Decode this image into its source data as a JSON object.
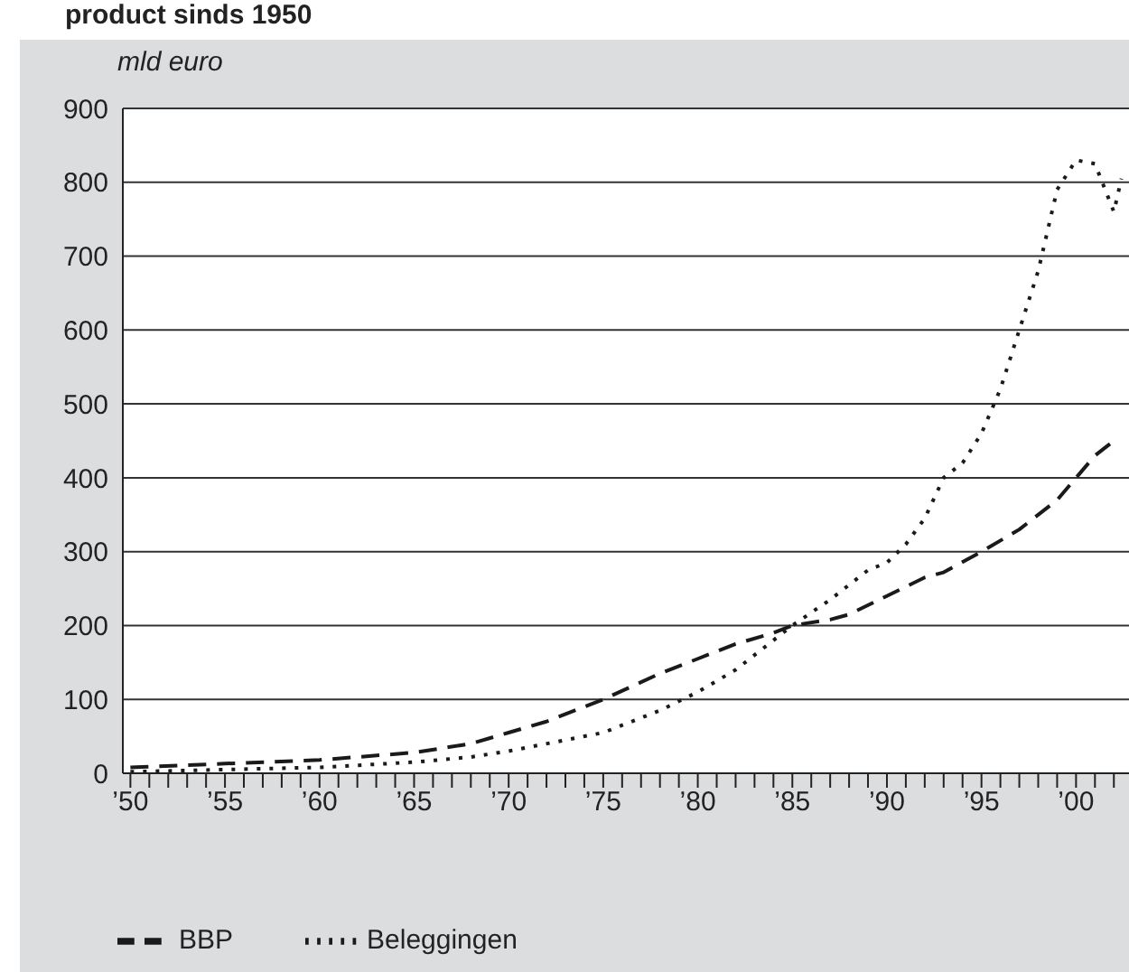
{
  "chart_data": {
    "type": "line",
    "title": "product sinds 1950",
    "ylabel": "mld euro",
    "xlim": [
      1949.6,
      2002.8
    ],
    "ylim": [
      0,
      900
    ],
    "yticks": [
      0,
      100,
      200,
      300,
      400,
      500,
      600,
      700,
      800,
      900
    ],
    "xticks": [
      {
        "value": 1950,
        "label": "’50"
      },
      {
        "value": 1951,
        "label": null
      },
      {
        "value": 1952,
        "label": null
      },
      {
        "value": 1953,
        "label": null
      },
      {
        "value": 1954,
        "label": null
      },
      {
        "value": 1955,
        "label": "’55"
      },
      {
        "value": 1956,
        "label": null
      },
      {
        "value": 1957,
        "label": null
      },
      {
        "value": 1958,
        "label": null
      },
      {
        "value": 1959,
        "label": null
      },
      {
        "value": 1960,
        "label": "’60"
      },
      {
        "value": 1961,
        "label": null
      },
      {
        "value": 1962,
        "label": null
      },
      {
        "value": 1963,
        "label": null
      },
      {
        "value": 1964,
        "label": null
      },
      {
        "value": 1965,
        "label": "’65"
      },
      {
        "value": 1966,
        "label": null
      },
      {
        "value": 1967,
        "label": null
      },
      {
        "value": 1968,
        "label": null
      },
      {
        "value": 1969,
        "label": null
      },
      {
        "value": 1970,
        "label": "’70"
      },
      {
        "value": 1971,
        "label": null
      },
      {
        "value": 1972,
        "label": null
      },
      {
        "value": 1973,
        "label": null
      },
      {
        "value": 1974,
        "label": null
      },
      {
        "value": 1975,
        "label": "’75"
      },
      {
        "value": 1976,
        "label": null
      },
      {
        "value": 1977,
        "label": null
      },
      {
        "value": 1978,
        "label": null
      },
      {
        "value": 1979,
        "label": null
      },
      {
        "value": 1980,
        "label": "’80"
      },
      {
        "value": 1981,
        "label": null
      },
      {
        "value": 1982,
        "label": null
      },
      {
        "value": 1983,
        "label": null
      },
      {
        "value": 1984,
        "label": null
      },
      {
        "value": 1985,
        "label": "’85"
      },
      {
        "value": 1986,
        "label": null
      },
      {
        "value": 1987,
        "label": null
      },
      {
        "value": 1988,
        "label": null
      },
      {
        "value": 1989,
        "label": null
      },
      {
        "value": 1990,
        "label": "’90"
      },
      {
        "value": 1991,
        "label": null
      },
      {
        "value": 1992,
        "label": null
      },
      {
        "value": 1993,
        "label": null
      },
      {
        "value": 1994,
        "label": null
      },
      {
        "value": 1995,
        "label": "’95"
      },
      {
        "value": 1996,
        "label": null
      },
      {
        "value": 1997,
        "label": null
      },
      {
        "value": 1998,
        "label": null
      },
      {
        "value": 1999,
        "label": null
      },
      {
        "value": 2000,
        "label": "’00"
      },
      {
        "value": 2001,
        "label": null
      },
      {
        "value": 2002,
        "label": null
      }
    ],
    "grid": "y",
    "legend": "bottom left",
    "marker": "none",
    "series": [
      {
        "name": "Beleggingen",
        "color": "#1a1a1a",
        "line_style": "dotted",
        "x": [
          1950,
          1955,
          1960,
          1965,
          1968,
          1970,
          1973,
          1975,
          1978,
          1980,
          1982,
          1984,
          1985,
          1987,
          1989,
          1990,
          1991,
          1992,
          1993,
          1994,
          1995,
          1996,
          1997,
          1998,
          1999,
          2000,
          2001,
          2002,
          2002.4
        ],
        "values": [
          2,
          5,
          8,
          15,
          22,
          30,
          45,
          55,
          85,
          110,
          140,
          180,
          200,
          235,
          275,
          285,
          310,
          345,
          400,
          420,
          460,
          520,
          600,
          680,
          790,
          830,
          825,
          760,
          805
        ]
      },
      {
        "name": "BBP",
        "color": "#1a1a1a",
        "line_style": "dashed",
        "x": [
          1950,
          1955,
          1960,
          1965,
          1968,
          1970,
          1972,
          1975,
          1978,
          1980,
          1982,
          1984,
          1985,
          1987,
          1988,
          1990,
          1992,
          1993,
          1995,
          1997,
          1999,
          2000,
          2001,
          2002
        ],
        "values": [
          8,
          13,
          18,
          28,
          40,
          55,
          70,
          100,
          135,
          155,
          175,
          190,
          200,
          208,
          215,
          240,
          265,
          272,
          300,
          330,
          370,
          400,
          430,
          450
        ]
      }
    ]
  }
}
